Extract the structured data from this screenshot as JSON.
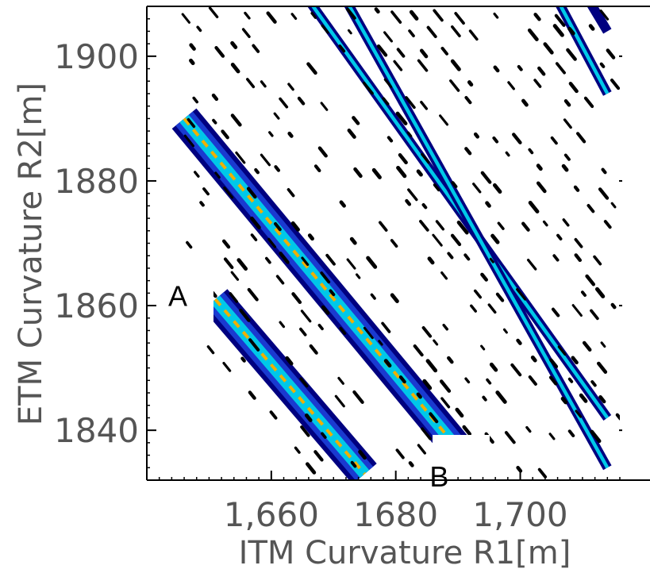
{
  "chart_data": {
    "type": "heatmap",
    "title": "",
    "xlabel": "ITM Curvature R1[m]",
    "ylabel": "ETM Curvature R2[m]",
    "xlim": [
      1640,
      1716
    ],
    "ylim": [
      1832,
      1908
    ],
    "x_ticks": [
      1660,
      1680,
      1700
    ],
    "x_tick_labels": [
      "1,660",
      "1680",
      "1,700"
    ],
    "y_ticks": [
      1840,
      1860,
      1880,
      1900
    ],
    "y_tick_labels": [
      "1840",
      "1860",
      "1880",
      "1900"
    ],
    "grid": false,
    "legend": "none",
    "colors": {
      "outer": "#000080",
      "middle": "#1a3ad0",
      "inner": "#00c8e8",
      "core": "#f0b000",
      "speckle": "#000000"
    },
    "annotations": [
      {
        "text": "A",
        "x": 1646,
        "y": 1862
      },
      {
        "text": "B",
        "x": 1688,
        "y": 1833
      }
    ],
    "bands": [
      {
        "name": "",
        "from": [
          1646,
          1890
        ],
        "to": [
          1690,
          1837
        ],
        "layers": [
          "outer",
          "middle",
          "inner",
          "core"
        ]
      },
      {
        "name": "",
        "from": [
          1651,
          1861
        ],
        "to": [
          1675,
          1833
        ],
        "layers": [
          "outer",
          "middle",
          "inner",
          "core"
        ]
      },
      {
        "name": "",
        "from": [
          1666,
          1909
        ],
        "to": [
          1714,
          1842
        ],
        "layers": [
          "outer",
          "inner"
        ]
      },
      {
        "name": "",
        "from": [
          1672,
          1909
        ],
        "to": [
          1714,
          1834
        ],
        "layers": [
          "outer",
          "inner"
        ]
      },
      {
        "name": "",
        "from": [
          1706,
          1909
        ],
        "to": [
          1714,
          1894
        ],
        "layers": [
          "outer",
          "inner"
        ]
      },
      {
        "name": "",
        "from": [
          1711,
          1909
        ],
        "to": [
          1714,
          1904
        ],
        "layers": [
          "outer"
        ]
      }
    ]
  }
}
